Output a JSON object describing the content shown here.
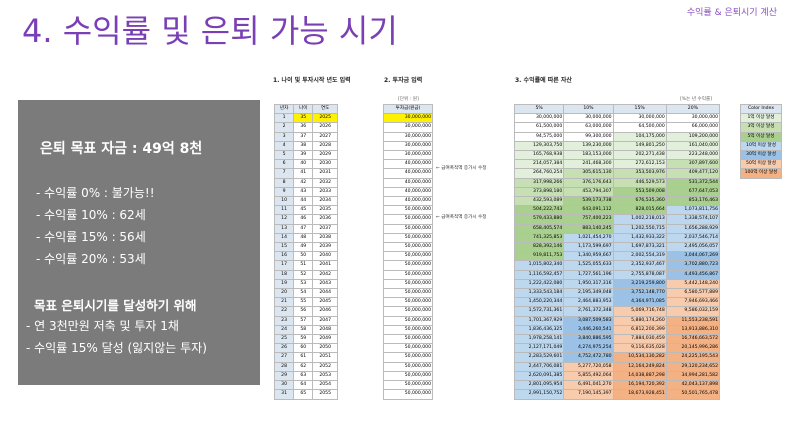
{
  "corner_label": "수익률 & 은퇴시기 계산",
  "title": "4. 수익률 및 은퇴 가능 시기",
  "panel": {
    "goal": "은퇴 목표 자금 : 49억 8천",
    "rates": [
      "- 수익률    0% : 불가능!!",
      "- 수익률 10% : 62세",
      "- 수익률 15% : 56세",
      "- 수익률 20% : 53세"
    ],
    "heading": "목표 은퇴시기를 달성하기 위해",
    "bullets": [
      "- 연 3천만원 저축 및 투자 1채",
      "- 수익률 15% 달성 (잃지않는 투자)"
    ]
  },
  "sections": {
    "s1": "1. 나이 및 투자시작 년도 입력",
    "s2": "2. 투자금 입력",
    "s3": "3. 수익률에 따른 자산"
  },
  "units": {
    "u2": "[단위 : 원]",
    "u3": "[%는 년 수익률]"
  },
  "notes": {
    "n1": "← 급여폭적액 증가시 수정",
    "n2": "← 급여폭적액 증가시 수정"
  },
  "table1": {
    "headers": [
      "년차",
      "나이",
      "연도"
    ],
    "rows": [
      [
        "1",
        "35",
        "2025"
      ],
      [
        "2",
        "36",
        "2026"
      ],
      [
        "3",
        "37",
        "2027"
      ],
      [
        "4",
        "38",
        "2028"
      ],
      [
        "5",
        "39",
        "2029"
      ],
      [
        "6",
        "40",
        "2030"
      ],
      [
        "7",
        "41",
        "2031"
      ],
      [
        "8",
        "42",
        "2032"
      ],
      [
        "9",
        "43",
        "2033"
      ],
      [
        "10",
        "44",
        "2034"
      ],
      [
        "11",
        "45",
        "2035"
      ],
      [
        "12",
        "46",
        "2036"
      ],
      [
        "13",
        "47",
        "2037"
      ],
      [
        "14",
        "48",
        "2038"
      ],
      [
        "15",
        "49",
        "2039"
      ],
      [
        "16",
        "50",
        "2040"
      ],
      [
        "17",
        "51",
        "2041"
      ],
      [
        "18",
        "52",
        "2042"
      ],
      [
        "19",
        "53",
        "2043"
      ],
      [
        "20",
        "54",
        "2044"
      ],
      [
        "21",
        "55",
        "2045"
      ],
      [
        "22",
        "56",
        "2046"
      ],
      [
        "23",
        "57",
        "2047"
      ],
      [
        "24",
        "58",
        "2048"
      ],
      [
        "25",
        "59",
        "2049"
      ],
      [
        "26",
        "60",
        "2050"
      ],
      [
        "27",
        "61",
        "2051"
      ],
      [
        "28",
        "62",
        "2052"
      ],
      [
        "29",
        "63",
        "2053"
      ],
      [
        "30",
        "64",
        "2054"
      ],
      [
        "31",
        "65",
        "2055"
      ]
    ]
  },
  "table2": {
    "header": "투자금(원금)",
    "rows": [
      "30,000,000",
      "30,000,000",
      "30,000,000",
      "30,000,000",
      "30,000,000",
      "40,000,000",
      "40,000,000",
      "40,000,000",
      "40,000,000",
      "40,000,000",
      "50,000,000",
      "50,000,000",
      "50,000,000",
      "50,000,000",
      "50,000,000",
      "50,000,000",
      "50,000,000",
      "50,000,000",
      "50,000,000",
      "50,000,000",
      "50,000,000",
      "50,000,000",
      "50,000,000",
      "50,000,000",
      "50,000,000",
      "50,000,000",
      "50,000,000",
      "50,000,000",
      "50,000,000",
      "50,000,000",
      "50,000,000"
    ]
  },
  "table3": {
    "headers": [
      "5%",
      "10%",
      "15%",
      "20%"
    ],
    "rows": [
      [
        "30,000,000",
        "30,000,000",
        "30,000,000",
        "30,000,000"
      ],
      [
        "61,500,000",
        "63,000,000",
        "64,500,000",
        "66,000,000"
      ],
      [
        "94,575,000",
        "99,300,000",
        "104,175,000",
        "109,200,000"
      ],
      [
        "129,303,750",
        "139,230,000",
        "149,801,250",
        "161,040,000"
      ],
      [
        "165,768,938",
        "183,153,000",
        "202,271,438",
        "223,248,000"
      ],
      [
        "214,057,384",
        "241,468,300",
        "272,612,153",
        "307,897,600"
      ],
      [
        "264,760,254",
        "305,615,130",
        "353,503,976",
        "409,477,120"
      ],
      [
        "317,998,266",
        "376,176,643",
        "446,529,573",
        "531,372,544"
      ],
      [
        "373,898,180",
        "453,794,307",
        "553,509,008",
        "677,647,053"
      ],
      [
        "432,593,089",
        "539,173,738",
        "676,535,360",
        "853,176,463"
      ],
      [
        "504,222,743",
        "643,091,112",
        "828,015,664",
        "1,073,811,756"
      ],
      [
        "579,433,880",
        "757,400,223",
        "1,002,218,013",
        "1,338,574,107"
      ],
      [
        "658,405,574",
        "883,140,245",
        "1,202,550,715",
        "1,656,288,929"
      ],
      [
        "741,325,853",
        "1,021,454,270",
        "1,432,933,322",
        "2,037,546,714"
      ],
      [
        "828,392,146",
        "1,173,599,697",
        "1,697,873,321",
        "2,495,056,057"
      ],
      [
        "919,811,753",
        "1,340,959,667",
        "2,002,554,319",
        "3,044,067,269"
      ],
      [
        "1,015,802,340",
        "1,525,055,633",
        "2,352,937,467",
        "3,702,880,723"
      ],
      [
        "1,116,592,457",
        "1,727,561,196",
        "2,755,878,087",
        "4,493,456,867"
      ],
      [
        "1,222,422,080",
        "1,950,317,316",
        "3,219,259,800",
        "5,442,148,240"
      ],
      [
        "1,333,543,184",
        "2,195,349,048",
        "3,752,148,770",
        "6,580,577,889"
      ],
      [
        "1,450,220,344",
        "2,464,883,953",
        "4,364,971,085",
        "7,946,693,466"
      ],
      [
        "1,572,731,361",
        "2,761,372,348",
        "5,069,716,748",
        "9,586,032,159"
      ],
      [
        "1,701,367,929",
        "3,087,509,583",
        "5,880,174,260",
        "11,553,238,591"
      ],
      [
        "1,836,436,325",
        "3,446,260,541",
        "6,812,200,399",
        "13,913,886,310"
      ],
      [
        "1,978,258,141",
        "3,840,886,595",
        "7,884,030,459",
        "16,746,663,572"
      ],
      [
        "2,127,171,049",
        "4,274,975,254",
        "9,116,635,028",
        "20,145,996,286"
      ],
      [
        "2,283,529,601",
        "4,752,472,780",
        "10,534,130,282",
        "24,225,195,543"
      ],
      [
        "2,447,706,081",
        "5,277,720,058",
        "12,164,249,824",
        "29,120,234,652"
      ],
      [
        "2,620,091,385",
        "5,855,492,064",
        "14,038,887,298",
        "34,994,281,582"
      ],
      [
        "2,801,095,954",
        "6,491,041,270",
        "16,194,720,392",
        "42,043,137,898"
      ],
      [
        "2,991,150,752",
        "7,190,145,397",
        "18,673,928,451",
        "50,501,765,478"
      ]
    ]
  },
  "legend": {
    "header": "Color Index",
    "items": [
      "1억 이상 달성",
      "3억 이상 달성",
      "5억 이상 달성",
      "10억 이상 달성",
      "30억 이상 달성",
      "50억 이상 달성",
      "100억 이상 달성"
    ],
    "colors": [
      "#ffffff",
      "#e2efda",
      "#c6e0b4",
      "#a9d08e",
      "#bdd7ee",
      "#9bc2e6",
      "#f8cbad",
      "#f4b183"
    ]
  },
  "thresholds": [
    100000000,
    300000000,
    500000000,
    1000000000,
    3000000000,
    5000000000,
    10000000000
  ]
}
